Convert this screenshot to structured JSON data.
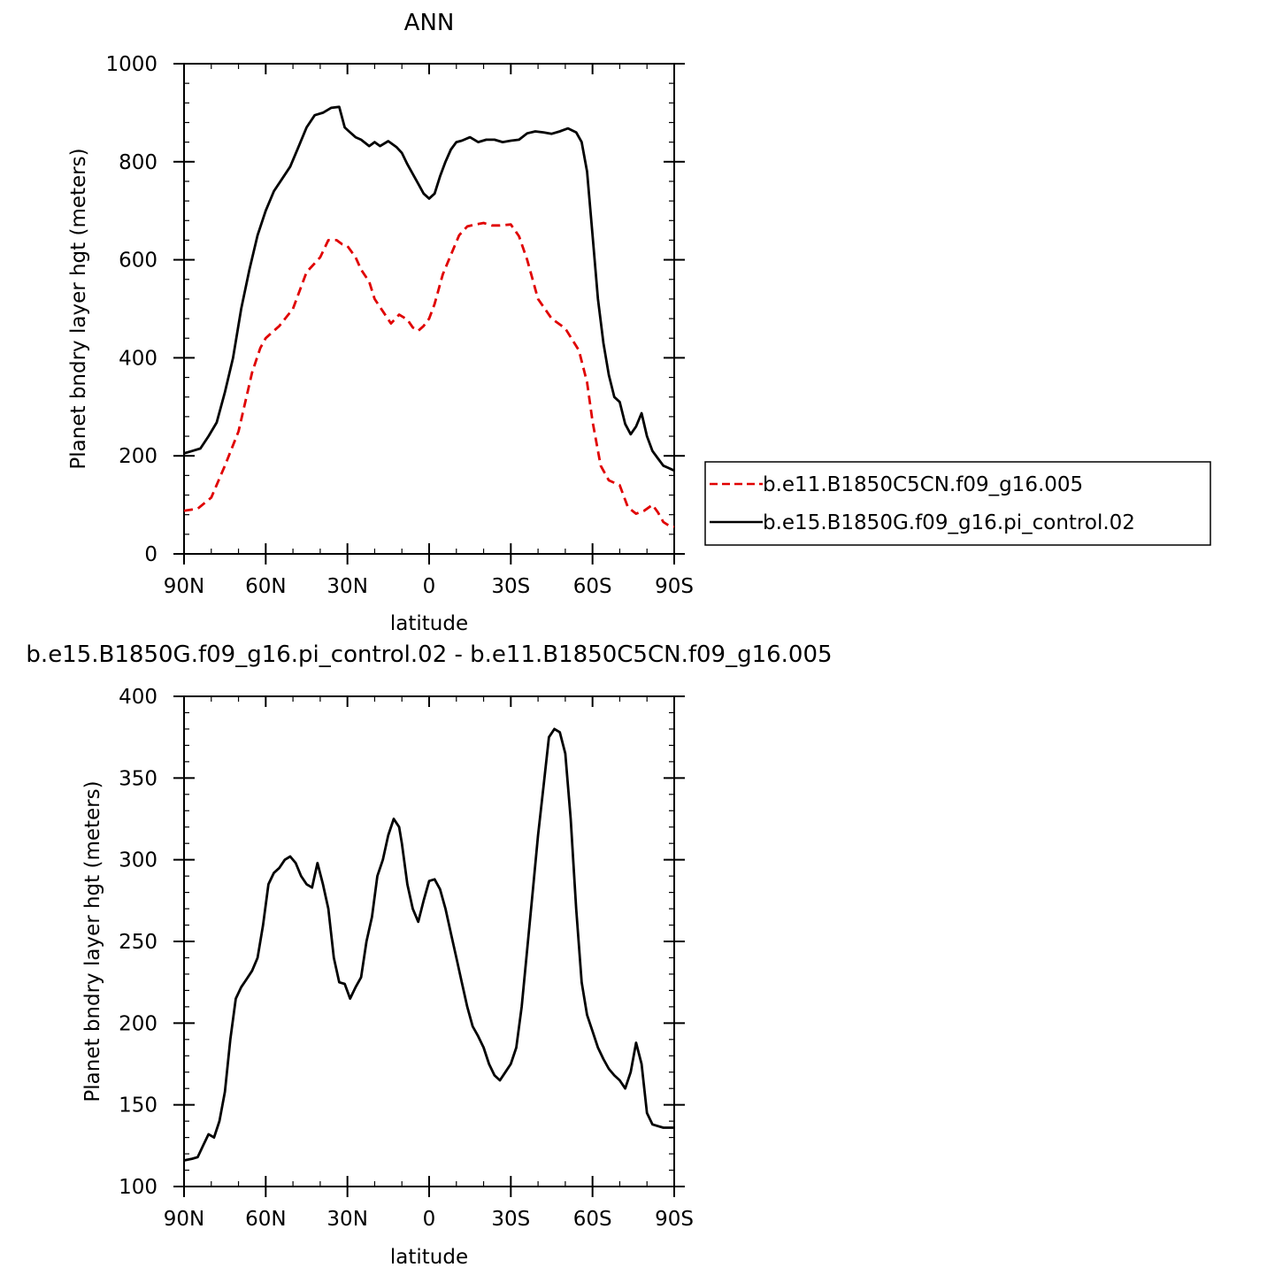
{
  "chart_data": [
    {
      "type": "line",
      "title": "ANN",
      "xlabel": "latitude",
      "ylabel": "Planet bndry layer hgt (meters)",
      "xlim": [
        -90,
        90
      ],
      "ylim": [
        0,
        1000
      ],
      "xticks": [
        -90,
        -60,
        -30,
        0,
        30,
        60,
        90
      ],
      "xtick_labels": [
        "90N",
        "60N",
        "30N",
        "0",
        "30S",
        "60S",
        "90S"
      ],
      "yticks": [
        0,
        200,
        400,
        600,
        800,
        1000
      ],
      "ytick_labels": [
        "0",
        "200",
        "400",
        "600",
        "800",
        "1000"
      ],
      "legend_position": "right",
      "series": [
        {
          "name": "b.e11.B1850C5CN.f09_g16.005",
          "color": "#e00000",
          "dash": "dashed",
          "x": [
            -90,
            -85,
            -80,
            -75,
            -70,
            -65,
            -62,
            -60,
            -55,
            -50,
            -45,
            -40,
            -37,
            -34,
            -32,
            -30,
            -27,
            -25,
            -22,
            -20,
            -17,
            -14,
            -11,
            -8,
            -6,
            -4,
            -2,
            0,
            2,
            5,
            8,
            11,
            14,
            17,
            20,
            23,
            26,
            30,
            33,
            36,
            40,
            45,
            50,
            55,
            58,
            60,
            63,
            66,
            70,
            73,
            76,
            79,
            82,
            84,
            86,
            88,
            90
          ],
          "values": [
            88,
            92,
            115,
            180,
            250,
            370,
            420,
            440,
            465,
            500,
            575,
            605,
            640,
            640,
            632,
            628,
            605,
            580,
            555,
            520,
            495,
            470,
            488,
            478,
            462,
            455,
            465,
            480,
            510,
            570,
            610,
            650,
            668,
            672,
            675,
            670,
            670,
            672,
            648,
            600,
            520,
            480,
            460,
            415,
            350,
            270,
            180,
            150,
            140,
            95,
            82,
            88,
            100,
            85,
            65,
            58,
            55
          ]
        },
        {
          "name": "b.e15.B1850G.f09_g16.pi_control.02",
          "color": "#000000",
          "dash": "solid",
          "x": [
            -90,
            -87,
            -84,
            -81,
            -78,
            -75,
            -72,
            -69,
            -66,
            -63,
            -60,
            -57,
            -54,
            -51,
            -48,
            -45,
            -42,
            -39,
            -36,
            -33,
            -31,
            -29,
            -27,
            -25,
            -22,
            -20,
            -18,
            -15,
            -12,
            -10,
            -8,
            -6,
            -4,
            -2,
            0,
            2,
            4,
            6,
            8,
            10,
            12,
            15,
            18,
            21,
            24,
            27,
            30,
            33,
            36,
            39,
            42,
            45,
            48,
            51,
            54,
            56,
            58,
            60,
            62,
            64,
            66,
            68,
            70,
            72,
            74,
            76,
            78,
            80,
            82,
            84,
            86,
            88,
            90
          ],
          "values": [
            205,
            210,
            215,
            240,
            268,
            330,
            400,
            500,
            580,
            650,
            700,
            740,
            765,
            790,
            830,
            870,
            895,
            900,
            910,
            912,
            870,
            860,
            850,
            845,
            832,
            840,
            832,
            842,
            830,
            818,
            795,
            775,
            755,
            735,
            725,
            735,
            770,
            800,
            825,
            840,
            843,
            850,
            840,
            845,
            845,
            840,
            843,
            845,
            858,
            862,
            860,
            857,
            862,
            868,
            860,
            840,
            780,
            650,
            520,
            430,
            365,
            320,
            310,
            265,
            244,
            260,
            287,
            240,
            210,
            195,
            180,
            175,
            170
          ]
        }
      ]
    },
    {
      "type": "line",
      "title": "b.e15.B1850G.f09_g16.pi_control.02 - b.e11.B1850C5CN.f09_g16.005",
      "xlabel": "latitude",
      "ylabel": "Planet bndry layer hgt (meters)",
      "xlim": [
        -90,
        90
      ],
      "ylim": [
        100,
        400
      ],
      "xticks": [
        -90,
        -60,
        -30,
        0,
        30,
        60,
        90
      ],
      "xtick_labels": [
        "90N",
        "60N",
        "30N",
        "0",
        "30S",
        "60S",
        "90S"
      ],
      "yticks": [
        100,
        150,
        200,
        250,
        300,
        350,
        400
      ],
      "ytick_labels": [
        "100",
        "150",
        "200",
        "250",
        "300",
        "350",
        "400"
      ],
      "series": [
        {
          "color": "#000000",
          "dash": "solid",
          "x": [
            -90,
            -87,
            -85,
            -83,
            -81,
            -79,
            -77,
            -75,
            -73,
            -71,
            -69,
            -67,
            -65,
            -63,
            -61,
            -59,
            -57,
            -55,
            -53,
            -51,
            -49,
            -47,
            -45,
            -43,
            -41,
            -39,
            -37,
            -35,
            -33,
            -31,
            -29,
            -27,
            -25,
            -23,
            -21,
            -19,
            -17,
            -15,
            -13,
            -11,
            -10,
            -8,
            -6,
            -4,
            -2,
            0,
            2,
            4,
            6,
            8,
            10,
            12,
            14,
            16,
            18,
            20,
            22,
            24,
            26,
            28,
            30,
            32,
            34,
            36,
            38,
            40,
            42,
            44,
            46,
            48,
            50,
            52,
            54,
            56,
            58,
            60,
            62,
            64,
            66,
            68,
            70,
            72,
            74,
            76,
            78,
            80,
            82,
            84,
            86,
            88,
            90
          ],
          "values": [
            116,
            117,
            118,
            125,
            132,
            130,
            140,
            158,
            190,
            215,
            222,
            227,
            232,
            240,
            260,
            285,
            292,
            295,
            300,
            302,
            298,
            290,
            285,
            283,
            298,
            285,
            270,
            240,
            225,
            224,
            215,
            222,
            228,
            250,
            265,
            290,
            300,
            315,
            325,
            320,
            310,
            285,
            270,
            262,
            275,
            287,
            288,
            282,
            270,
            255,
            240,
            225,
            210,
            198,
            192,
            185,
            175,
            168,
            165,
            170,
            175,
            185,
            210,
            245,
            280,
            315,
            345,
            375,
            380,
            378,
            365,
            325,
            270,
            225,
            205,
            195,
            185,
            178,
            172,
            168,
            165,
            160,
            170,
            188,
            175,
            145,
            138,
            137,
            136,
            136,
            136
          ]
        }
      ]
    }
  ]
}
